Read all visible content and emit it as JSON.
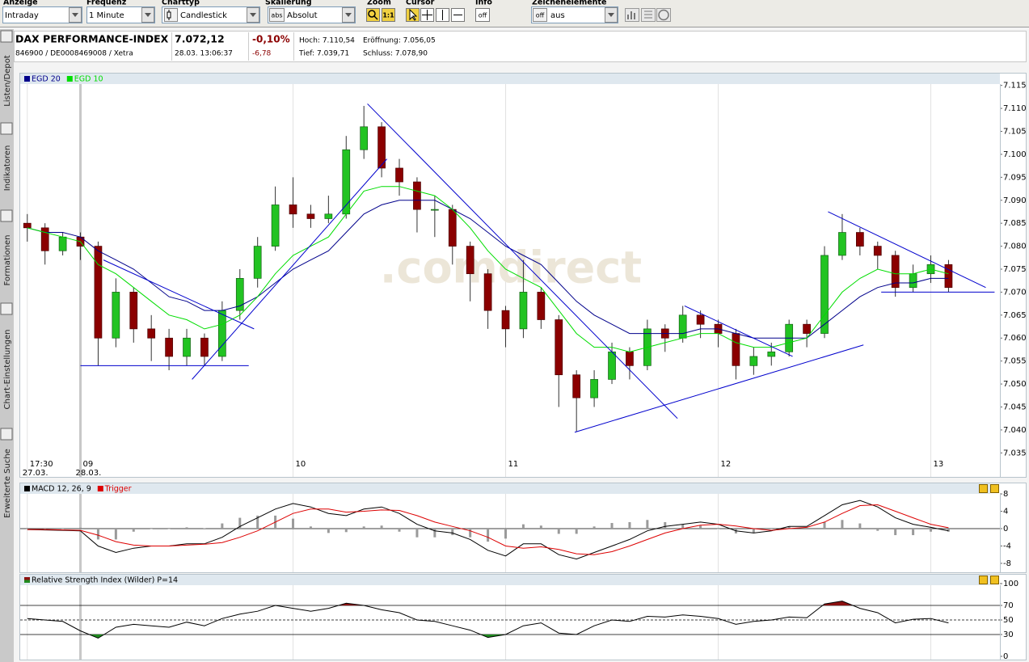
{
  "toolbar": [
    {
      "label": "Anzeige",
      "value": "Intraday"
    },
    {
      "label": "Frequenz",
      "value": "1 Minute"
    },
    {
      "label": "Charttyp",
      "value": "Candlestick"
    },
    {
      "label": "Skalierung",
      "icon": "abs",
      "value": "Absolut"
    },
    {
      "label": "Zoom",
      "button": "1:1"
    },
    {
      "label": "Cursor"
    },
    {
      "label": "Info",
      "button": "off"
    },
    {
      "label": "Zeichenelemente",
      "icon": "off",
      "value": "aus"
    }
  ],
  "sidebar": [
    "Listen/Depot",
    "Indikatoren",
    "Formationen",
    "Chart-Einstellungen",
    "Erweiterte Suche"
  ],
  "quote": {
    "name": "DAX PERFORMANCE-INDEX",
    "ids": "846900 / DE0008469008 / Xetra",
    "price": "7.072,12",
    "time": "28.03. 13:06:37",
    "change_pct": "-0,10%",
    "change": "-6,78",
    "high": "Hoch: 7.110,54",
    "low": "Tief: 7.039,71",
    "open": "Eröffnung: 7.056,05",
    "close": "Schluss: 7.078,90"
  },
  "chart_data": [
    {
      "type": "candlestick",
      "watermark": ".comdirect",
      "xlim": [
        -0.4,
        54.9
      ],
      "xticks": [
        {
          "value": 0,
          "label": "17:30",
          "date": "27.03."
        },
        {
          "value": 3,
          "label": "09",
          "date": "28.03."
        },
        {
          "value": 15,
          "label": "10"
        },
        {
          "value": 27,
          "label": "11"
        },
        {
          "value": 39,
          "label": "12"
        },
        {
          "value": 51,
          "label": "13"
        }
      ],
      "ylim": [
        7034,
        7116
      ],
      "yticks": [
        {
          "value": 7035,
          "label": "7.035"
        },
        {
          "value": 7040,
          "label": "7.040"
        },
        {
          "value": 7045,
          "label": "7.045"
        },
        {
          "value": 7050,
          "label": "7.050"
        },
        {
          "value": 7055,
          "label": "7.055"
        },
        {
          "value": 7060,
          "label": "7.060"
        },
        {
          "value": 7065,
          "label": "7.065"
        },
        {
          "value": 7070,
          "label": "7.070"
        },
        {
          "value": 7075,
          "label": "7.075"
        },
        {
          "value": 7080,
          "label": "7.080"
        },
        {
          "value": 7085,
          "label": "7.085"
        },
        {
          "value": 7090,
          "label": "7.090"
        },
        {
          "value": 7095,
          "label": "7.095"
        },
        {
          "value": 7100,
          "label": "7.100"
        },
        {
          "value": 7105,
          "label": "7.105"
        },
        {
          "value": 7110,
          "label": "7.110"
        },
        {
          "value": 7115,
          "label": "7.115"
        }
      ],
      "up_color": "#22c322",
      "down_color": "#8b0000",
      "open": [
        7085,
        7084,
        7079,
        7082,
        7080,
        7060,
        7070,
        7062,
        7060,
        7056,
        7060,
        7056,
        7066,
        7073,
        7080,
        7089,
        7087,
        7086,
        7087,
        7101,
        7106,
        7097,
        7094,
        7088,
        7088,
        7080,
        7074,
        7066,
        7062,
        7070,
        7064,
        7052,
        7047,
        7051,
        7057,
        7054,
        7062,
        7060,
        7065,
        7063,
        7061,
        7054,
        7056,
        7057,
        7063,
        7061,
        7078,
        7083,
        7080,
        7078,
        7071,
        7074,
        7076
      ],
      "high": [
        7087,
        7085,
        7083,
        7083,
        7081,
        7073,
        7071,
        7065,
        7062,
        7062,
        7061,
        7068,
        7075,
        7082,
        7093,
        7095,
        7089,
        7091,
        7104,
        7110.54,
        7107,
        7099,
        7095,
        7091,
        7089,
        7081,
        7075,
        7067,
        7077,
        7071,
        7065,
        7053,
        7053,
        7059,
        7058,
        7064,
        7063,
        7067,
        7066,
        7064,
        7062,
        7058,
        7059,
        7064,
        7064,
        7080,
        7087,
        7084,
        7081,
        7079,
        7076,
        7078,
        7077
      ],
      "low": [
        7081,
        7076,
        7078,
        7077,
        7054,
        7058,
        7059,
        7055,
        7053,
        7054,
        7054,
        7055,
        7064,
        7071,
        7079,
        7084,
        7084,
        7085,
        7086,
        7099,
        7095,
        7091,
        7083,
        7082,
        7076,
        7068,
        7062,
        7058,
        7060,
        7062,
        7045,
        7039.71,
        7045,
        7050,
        7051,
        7053,
        7057,
        7059,
        7060,
        7058,
        7051,
        7052,
        7054,
        7056,
        7058,
        7060,
        7077,
        7078,
        7075,
        7069,
        7070,
        7072,
        7070
      ],
      "close": [
        7084,
        7079,
        7082,
        7080,
        7060,
        7070,
        7062,
        7060,
        7056,
        7060,
        7056,
        7066,
        7073,
        7080,
        7089,
        7087,
        7086,
        7087,
        7101,
        7106,
        7097,
        7094,
        7088,
        7088,
        7080,
        7074,
        7066,
        7062,
        7070,
        7064,
        7052,
        7047,
        7051,
        7057,
        7054,
        7062,
        7060,
        7065,
        7063,
        7061,
        7054,
        7056,
        7057,
        7063,
        7061,
        7078,
        7083,
        7080,
        7078,
        7071,
        7074,
        7076,
        7071
      ],
      "series": [
        {
          "name": "EGD 20",
          "color": "#00008b",
          "values": [
            7084,
            7083,
            7083,
            7082,
            7079,
            7077,
            7075,
            7072,
            7069,
            7068,
            7066,
            7066,
            7067,
            7069,
            7072,
            7075,
            7077,
            7079,
            7083,
            7087,
            7089,
            7090,
            7090,
            7090,
            7088,
            7086,
            7083,
            7080,
            7078,
            7076,
            7072,
            7068,
            7065,
            7063,
            7061,
            7061,
            7061,
            7061,
            7062,
            7062,
            7061,
            7060,
            7060,
            7060,
            7060,
            7063,
            7066,
            7069,
            7071,
            7072,
            7072,
            7073,
            7073
          ]
        },
        {
          "name": "EGD 10",
          "color": "#00dd00",
          "values": [
            7084,
            7083,
            7082,
            7081,
            7076,
            7074,
            7071,
            7068,
            7065,
            7064,
            7062,
            7063,
            7065,
            7069,
            7074,
            7078,
            7080,
            7082,
            7087,
            7092,
            7093,
            7093,
            7092,
            7091,
            7088,
            7084,
            7079,
            7075,
            7073,
            7071,
            7066,
            7061,
            7058,
            7058,
            7057,
            7058,
            7059,
            7060,
            7061,
            7061,
            7059,
            7058,
            7058,
            7059,
            7060,
            7065,
            7070,
            7073,
            7075,
            7074,
            7074,
            7075,
            7074
          ]
        }
      ],
      "trend_color": "#0000cd",
      "trend_lines": [
        {
          "x": [
            3,
            12.5
          ],
          "y": [
            7054,
            7054
          ]
        },
        {
          "x": [
            4.3,
            12.8
          ],
          "y": [
            7077,
            7062
          ]
        },
        {
          "x": [
            9.3,
            20.3
          ],
          "y": [
            7051,
            7099
          ]
        },
        {
          "x": [
            19.2,
            36.7
          ],
          "y": [
            7111,
            7042.5
          ]
        },
        {
          "x": [
            30.9,
            47.2
          ],
          "y": [
            7039.5,
            7058.5
          ]
        },
        {
          "x": [
            37.1,
            43.2
          ],
          "y": [
            7067,
            7056
          ]
        },
        {
          "x": [
            45.2,
            54.1
          ],
          "y": [
            7087.5,
            7071
          ]
        },
        {
          "x": [
            48.2,
            54.6
          ],
          "y": [
            7070,
            7070
          ]
        }
      ]
    },
    {
      "type": "line",
      "ylim": [
        -9.5,
        9.5
      ],
      "yticks": [
        8,
        4,
        0,
        -4,
        -8
      ],
      "ref_lines": [
        {
          "value": 0,
          "color": "#000000"
        }
      ],
      "series": [
        {
          "kind": "bar",
          "color": "#9a9a9a",
          "values": [
            0,
            -0.1,
            -0.1,
            -0.1,
            -2.5,
            -2.5,
            -0.7,
            0,
            0,
            0.3,
            0.1,
            1.2,
            2.5,
            3,
            3,
            2.3,
            0.5,
            -1,
            -0.8,
            0.5,
            0.7,
            -0.7,
            -2,
            -2,
            -1.5,
            -2,
            -3,
            -2.3,
            1,
            0.7,
            -1.2,
            -1.2,
            0.5,
            1.3,
            1.5,
            2,
            1.5,
            1,
            0.7,
            0,
            -1.1,
            -1,
            -0.1,
            0.5,
            0.2,
            1.5,
            2,
            1.2,
            -0.5,
            -1.5,
            -1.5,
            -0.7,
            -0.7
          ]
        },
        {
          "name": "MACD 12, 26, 9",
          "color": "#000000",
          "values": [
            -0.2,
            -0.3,
            -0.4,
            -0.5,
            -4,
            -5.5,
            -4.5,
            -4,
            -4,
            -3.5,
            -3.5,
            -2,
            0.5,
            2.5,
            4.5,
            5.8,
            5,
            3.5,
            3,
            4.5,
            5,
            3.5,
            1,
            -0.5,
            -1,
            -2.5,
            -5,
            -6.3,
            -3.5,
            -3.5,
            -6,
            -7,
            -5.5,
            -4,
            -2.5,
            -0.5,
            0.5,
            1,
            1.5,
            1,
            -0.5,
            -1,
            -0.5,
            0.5,
            0.5,
            3,
            5.5,
            6.5,
            5,
            2.5,
            1,
            0.3,
            -0.5
          ]
        },
        {
          "name": "Trigger",
          "color": "#dd0000",
          "values": [
            -0.2,
            -0.2,
            -0.3,
            -0.4,
            -1.5,
            -3,
            -3.8,
            -4,
            -4,
            -3.8,
            -3.6,
            -3.2,
            -2,
            -0.5,
            1.5,
            3.5,
            4.5,
            4.5,
            3.8,
            4,
            4.3,
            4.2,
            3,
            1.5,
            0.5,
            -0.5,
            -2,
            -4,
            -4.5,
            -4.2,
            -4.8,
            -5.8,
            -6,
            -5.3,
            -4,
            -2.5,
            -1,
            0,
            0.8,
            1,
            0.6,
            0,
            -0.4,
            0,
            0.3,
            1.5,
            3.5,
            5.3,
            5.5,
            4,
            2.5,
            1,
            0.2
          ]
        }
      ]
    },
    {
      "type": "line",
      "ylim": [
        0,
        100
      ],
      "yticks": [
        100,
        70,
        50,
        30,
        0
      ],
      "ref_lines": [
        {
          "value": 70,
          "color": "#000000"
        },
        {
          "value": 50,
          "color": "#000000",
          "dashed": true
        },
        {
          "value": 30,
          "color": "#000000"
        }
      ],
      "zones": [
        {
          "above": 70,
          "color": "#8b1010"
        },
        {
          "below": 30,
          "color": "#1f8b1f"
        }
      ],
      "series": [
        {
          "name": "Relative Strength Index (Wilder) P=14",
          "color": "#000000",
          "values": [
            52,
            50,
            48,
            35,
            25,
            40,
            44,
            42,
            40,
            47,
            42,
            52,
            58,
            62,
            70,
            66,
            62,
            66,
            73,
            70,
            64,
            60,
            50,
            48,
            42,
            36,
            26,
            30,
            42,
            46,
            32,
            30,
            42,
            50,
            48,
            55,
            54,
            57,
            55,
            52,
            44,
            48,
            50,
            54,
            53,
            72,
            76,
            66,
            60,
            46,
            51,
            52,
            46
          ]
        }
      ]
    }
  ]
}
